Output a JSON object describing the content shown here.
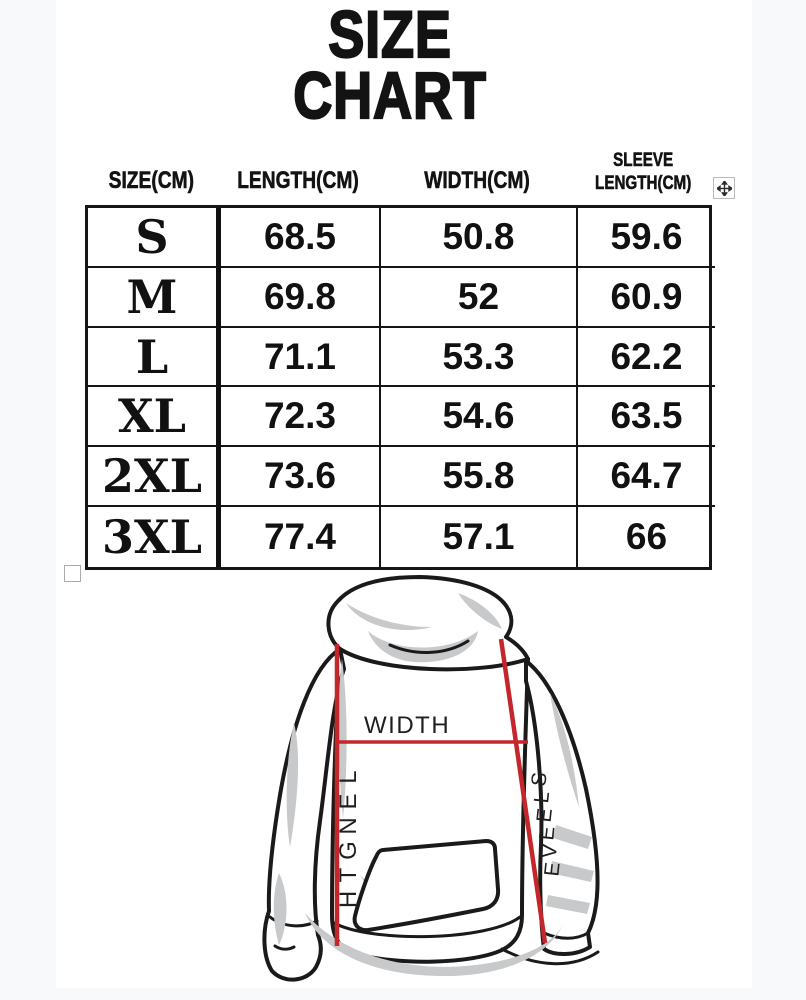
{
  "page": {
    "background_color": "#f7f9fa",
    "card_color": "#ffffff"
  },
  "title": {
    "line1": "SIZE",
    "line2": "CHART"
  },
  "size_table": {
    "columns": [
      {
        "label": "SIZE(CM)"
      },
      {
        "label": "LENGTH(CM)"
      },
      {
        "label": "WIDTH(CM)"
      },
      {
        "label": "SLEEVE LENGTH(CM)",
        "line1": "SLEEVE",
        "line2": "LENGTH(CM)"
      }
    ],
    "rows": [
      {
        "size": "S",
        "length": "68.5",
        "width": "50.8",
        "sleeve": "59.6"
      },
      {
        "size": "M",
        "length": "69.8",
        "width": "52",
        "sleeve": "60.9"
      },
      {
        "size": "L",
        "length": "71.1",
        "width": "53.3",
        "sleeve": "62.2"
      },
      {
        "size": "XL",
        "length": "72.3",
        "width": "54.6",
        "sleeve": "63.5"
      },
      {
        "size": "2XL",
        "length": "73.6",
        "width": "55.8",
        "sleeve": "64.7"
      },
      {
        "size": "3XL",
        "length": "77.4",
        "width": "57.1",
        "sleeve": "66"
      }
    ]
  },
  "diagram": {
    "labels": {
      "width": "WIDTH",
      "length": "LENGTH",
      "sleeve": "SLEEVE"
    },
    "line_color": "#c5262c",
    "outline_color": "#1a1a1a",
    "shading_color": "#c8c9ca"
  },
  "chart_data": {
    "type": "table",
    "title": "SIZE CHART",
    "columns": [
      "SIZE(CM)",
      "LENGTH(CM)",
      "WIDTH(CM)",
      "SLEEVE LENGTH(CM)"
    ],
    "rows": [
      [
        "S",
        68.5,
        50.8,
        59.6
      ],
      [
        "M",
        69.8,
        52,
        60.9
      ],
      [
        "L",
        71.1,
        53.3,
        62.2
      ],
      [
        "XL",
        72.3,
        54.6,
        63.5
      ],
      [
        "2XL",
        73.6,
        55.8,
        64.7
      ],
      [
        "3XL",
        77.4,
        57.1,
        66
      ]
    ]
  }
}
